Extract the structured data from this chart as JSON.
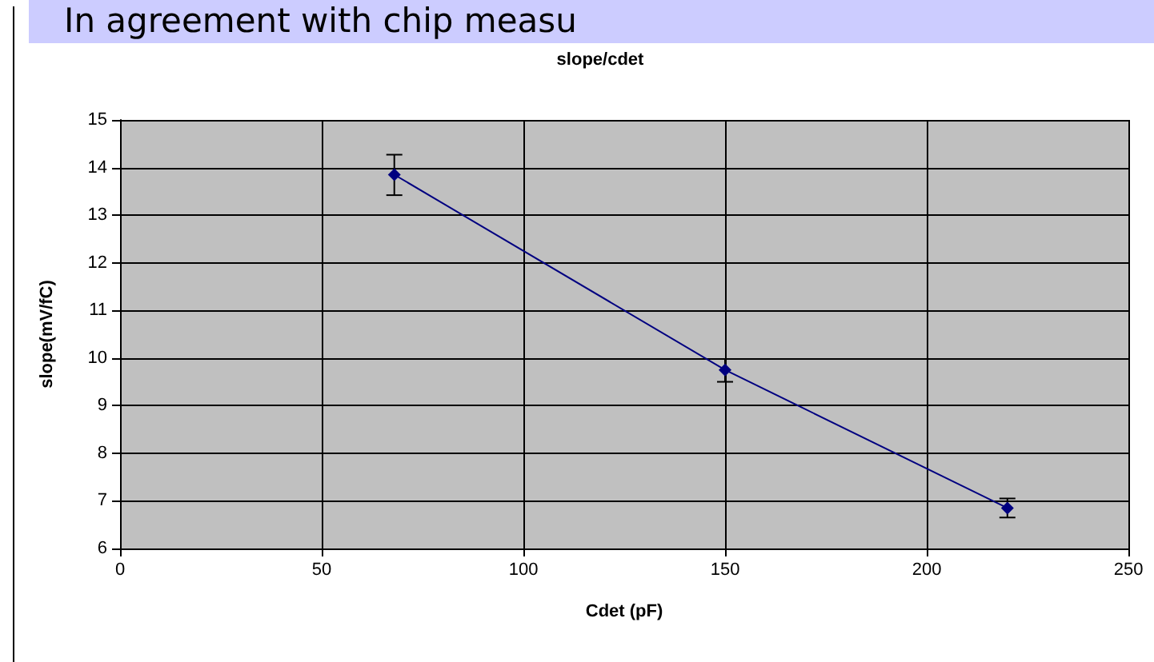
{
  "chart_data": {
    "type": "line",
    "title": "slope/cdet",
    "xlabel": "Cdet (pF)",
    "ylabel": "slope(mV/fC)",
    "annotations": [
      "In agreement with chip measu"
    ],
    "series": [
      {
        "x": [
          68,
          150,
          220
        ],
        "values": [
          13.85,
          9.75,
          6.85
        ],
        "color": "#000080",
        "errors": [
          [
            13.42,
            14.27
          ],
          [
            9.5,
            9.98
          ],
          [
            6.65,
            7.05
          ]
        ]
      }
    ],
    "xlim": [
      0,
      250
    ],
    "xticks": [
      0,
      50,
      100,
      150,
      200,
      250
    ],
    "ylim": [
      6,
      15
    ],
    "yticks": [
      6,
      7,
      8,
      9,
      10,
      11,
      12,
      13,
      14,
      15
    ],
    "grid": true,
    "marker": "diamond",
    "line_style": "solid"
  }
}
